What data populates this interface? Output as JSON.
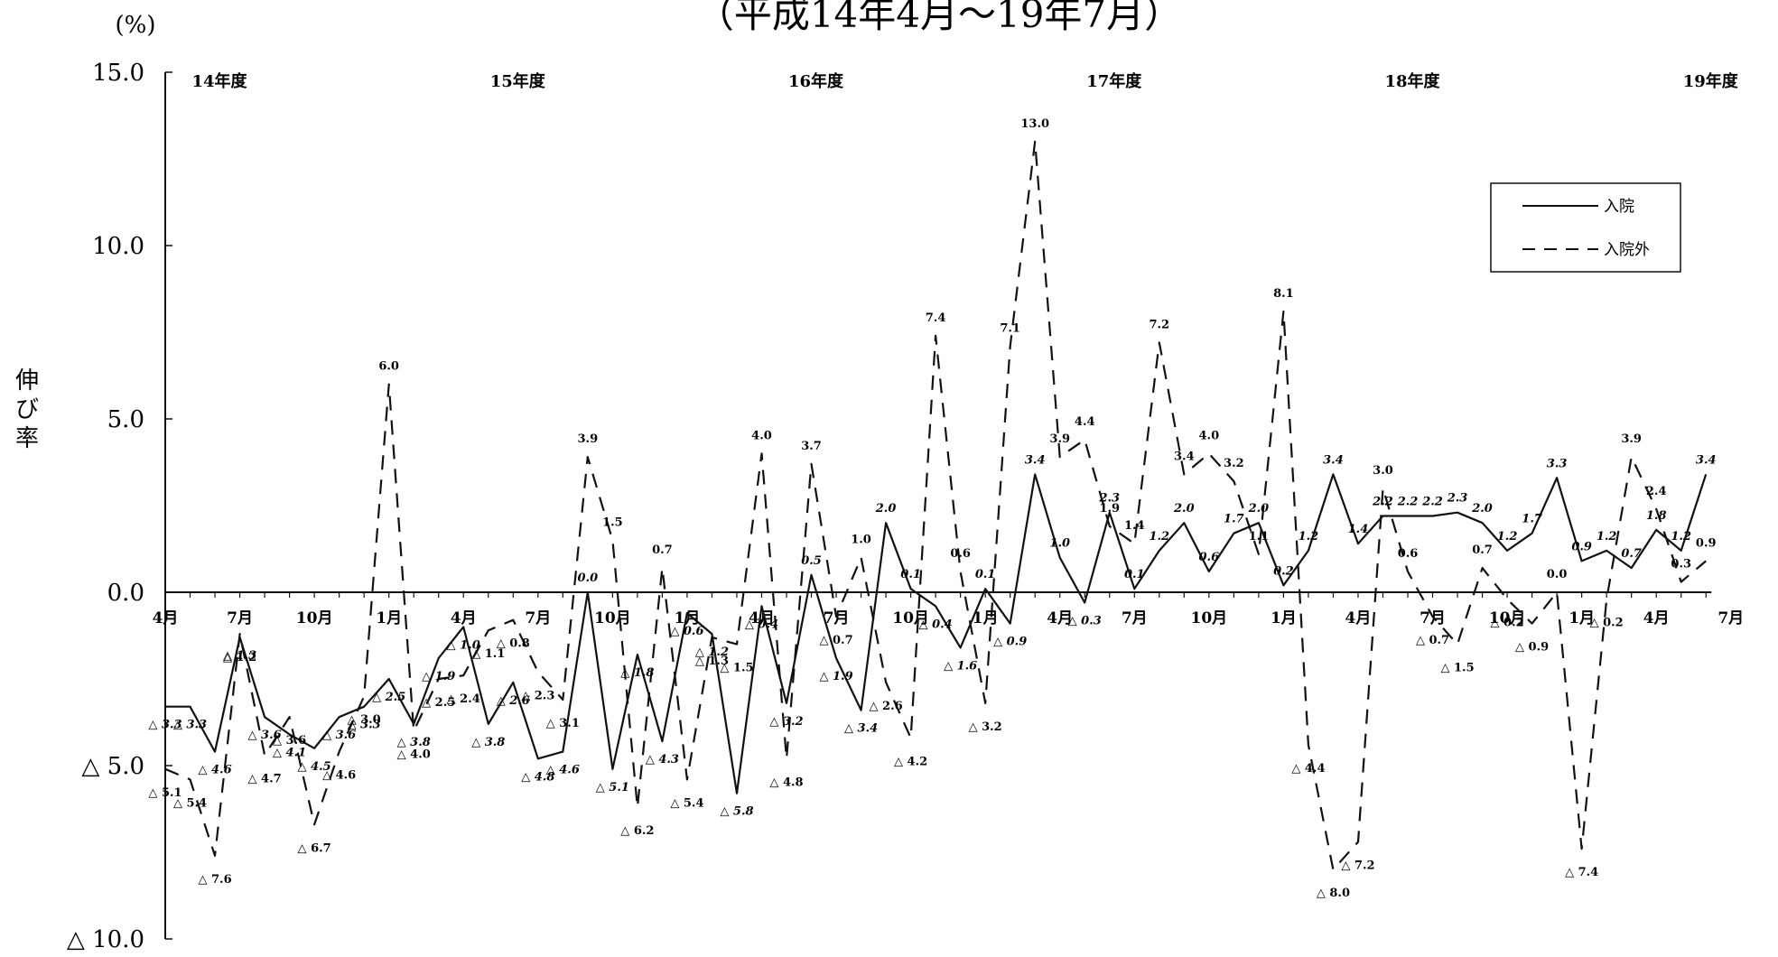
{
  "chart_data": {
    "type": "line",
    "title": "（平成14年4月～19年7月）",
    "unit_label": "(%)",
    "ylabel": "伸び率",
    "ylim": [
      -10,
      15
    ],
    "yticks": [
      {
        "value": 15,
        "label": "15.0"
      },
      {
        "value": 10,
        "label": "10.0"
      },
      {
        "value": 5,
        "label": "5.0"
      },
      {
        "value": 0,
        "label": "0.0"
      },
      {
        "value": -5,
        "label": "△ 5.0"
      },
      {
        "value": -10,
        "label": "△ 10.0"
      }
    ],
    "fiscal_years": [
      {
        "label": "14年度",
        "x": 2
      },
      {
        "label": "15年度",
        "x": 14
      },
      {
        "label": "16年度",
        "x": 26
      },
      {
        "label": "17年度",
        "x": 38
      },
      {
        "label": "18年度",
        "x": 50
      },
      {
        "label": "19年度",
        "x": 62
      }
    ],
    "month_ticks": [
      {
        "label": "4月",
        "x": 0
      },
      {
        "label": "7月",
        "x": 3
      },
      {
        "label": "10月",
        "x": 6
      },
      {
        "label": "1月",
        "x": 9
      },
      {
        "label": "4月",
        "x": 12
      },
      {
        "label": "7月",
        "x": 15
      },
      {
        "label": "10月",
        "x": 18
      },
      {
        "label": "1月",
        "x": 21
      },
      {
        "label": "4月",
        "x": 24
      },
      {
        "label": "7月",
        "x": 27
      },
      {
        "label": "10月",
        "x": 30
      },
      {
        "label": "1月",
        "x": 33
      },
      {
        "label": "4月",
        "x": 36
      },
      {
        "label": "7月",
        "x": 39
      },
      {
        "label": "10月",
        "x": 42
      },
      {
        "label": "1月",
        "x": 45
      },
      {
        "label": "4月",
        "x": 48
      },
      {
        "label": "7月",
        "x": 51
      },
      {
        "label": "10月",
        "x": 54
      },
      {
        "label": "1月",
        "x": 57
      },
      {
        "label": "4月",
        "x": 60
      },
      {
        "label": "7月",
        "x": 63
      }
    ],
    "series": [
      {
        "name": "入院",
        "style": "solid",
        "values": [
          -3.3,
          -3.3,
          -4.6,
          -1.3,
          -3.6,
          -4.1,
          -4.5,
          -3.6,
          -3.3,
          -2.5,
          -3.8,
          -1.9,
          -1.0,
          -3.8,
          -2.6,
          -4.8,
          -4.6,
          0.0,
          -5.1,
          -1.8,
          -4.3,
          -0.6,
          -1.2,
          -5.8,
          -0.4,
          -3.2,
          0.5,
          -1.9,
          -3.4,
          2.0,
          0.1,
          -0.4,
          -1.6,
          0.1,
          -0.9,
          3.4,
          1.0,
          -0.3,
          2.3,
          0.1,
          1.2,
          2.0,
          0.6,
          1.7,
          2.0,
          0.2,
          1.2,
          3.4,
          1.4,
          2.2,
          2.2,
          2.2,
          2.3,
          2.0,
          1.2,
          1.7,
          3.3,
          0.9,
          1.2,
          0.7,
          1.8,
          1.2,
          3.4
        ],
        "labels": [
          "△ 3.3",
          "△ 3.3",
          "△ 4.6",
          "△ 1.3",
          "△ 3.6",
          "△ 4.1",
          "△ 4.5",
          "△ 3.6",
          "△ 3.3",
          "△ 2.5",
          "△ 3.8",
          "△ 1.9",
          "△ 1.0",
          "△ 3.8",
          "△ 2.6",
          "△ 4.8",
          "△ 4.6",
          "0.0",
          "△ 5.1",
          "△ 1.8",
          "△ 4.3",
          "△ 0.6",
          "△ 1.2",
          "△ 5.8",
          "△ 0.4",
          "△ 3.2",
          "0.5",
          "△ 1.9",
          "△ 3.4",
          "2.0",
          "0.1",
          "△ 0.4",
          "△ 1.6",
          "0.1",
          "△ 0.9",
          "3.4",
          "1.0",
          "△ 0.3",
          "2.3",
          "0.1",
          "1.2",
          "2.0",
          "0.6",
          "1.7",
          "2.0",
          "0.2",
          "1.2",
          "3.4",
          "1.4",
          "2.2",
          "2.2",
          "2.2",
          "2.3",
          "2.0",
          "1.2",
          "1.7",
          "3.3",
          "0.9",
          "1.2",
          "0.7",
          "1.8",
          "1.2",
          "3.4"
        ]
      },
      {
        "name": "入院外",
        "style": "dashed",
        "values": [
          -5.1,
          -5.4,
          -7.6,
          -1.2,
          -4.7,
          -3.6,
          -6.7,
          -4.6,
          -3.0,
          6.0,
          -4.0,
          -2.5,
          -2.4,
          -1.1,
          -0.8,
          -2.3,
          -3.1,
          3.9,
          1.5,
          -6.2,
          0.7,
          -5.4,
          -1.3,
          -1.5,
          4.0,
          -4.8,
          3.7,
          -0.7,
          1.0,
          -2.6,
          -4.2,
          7.4,
          0.6,
          -3.2,
          7.1,
          13.0,
          3.9,
          4.4,
          1.9,
          1.4,
          7.2,
          3.4,
          4.0,
          3.2,
          1.1,
          8.1,
          -4.4,
          -8.0,
          -7.2,
          3.0,
          0.6,
          -0.7,
          -1.5,
          0.7,
          -0.2,
          -0.9,
          0.0,
          -7.4,
          -0.2,
          3.9,
          2.4,
          0.3,
          0.9
        ],
        "labels": [
          "△ 5.1",
          "△ 5.4",
          "△ 7.6",
          "△ 1.2",
          "△ 4.7",
          "△ 3.6",
          "△ 6.7",
          "△ 4.6",
          "△ 3.0",
          "6.0",
          "△ 4.0",
          "△ 2.5",
          "△ 2.4",
          "△ 1.1",
          "△ 0.8",
          "△ 2.3",
          "△ 3.1",
          "3.9",
          "1.5",
          "△ 6.2",
          "0.7",
          "△ 5.4",
          "△ 1.3",
          "△ 1.5",
          "4.0",
          "△ 4.8",
          "3.7",
          "△ 0.7",
          "1.0",
          "△ 2.6",
          "△ 4.2",
          "7.4",
          "0.6",
          "△ 3.2",
          "7.1",
          "13.0",
          "3.9",
          "4.4",
          "1.9",
          "1.4",
          "7.2",
          "3.4",
          "4.0",
          "3.2",
          "1.1",
          "8.1",
          "△ 4.4",
          "△ 8.0",
          "△ 7.2",
          "3.0",
          "0.6",
          "△ 0.7",
          "△ 1.5",
          "0.7",
          "△ 0.2",
          "△ 0.9",
          "0.0",
          "△ 7.4",
          "△ 0.2",
          "3.9",
          "2.4",
          "0.3",
          "0.9"
        ]
      }
    ],
    "legend": {
      "position": "top-right",
      "items": [
        "入院",
        "入院外"
      ]
    },
    "grid": false
  }
}
